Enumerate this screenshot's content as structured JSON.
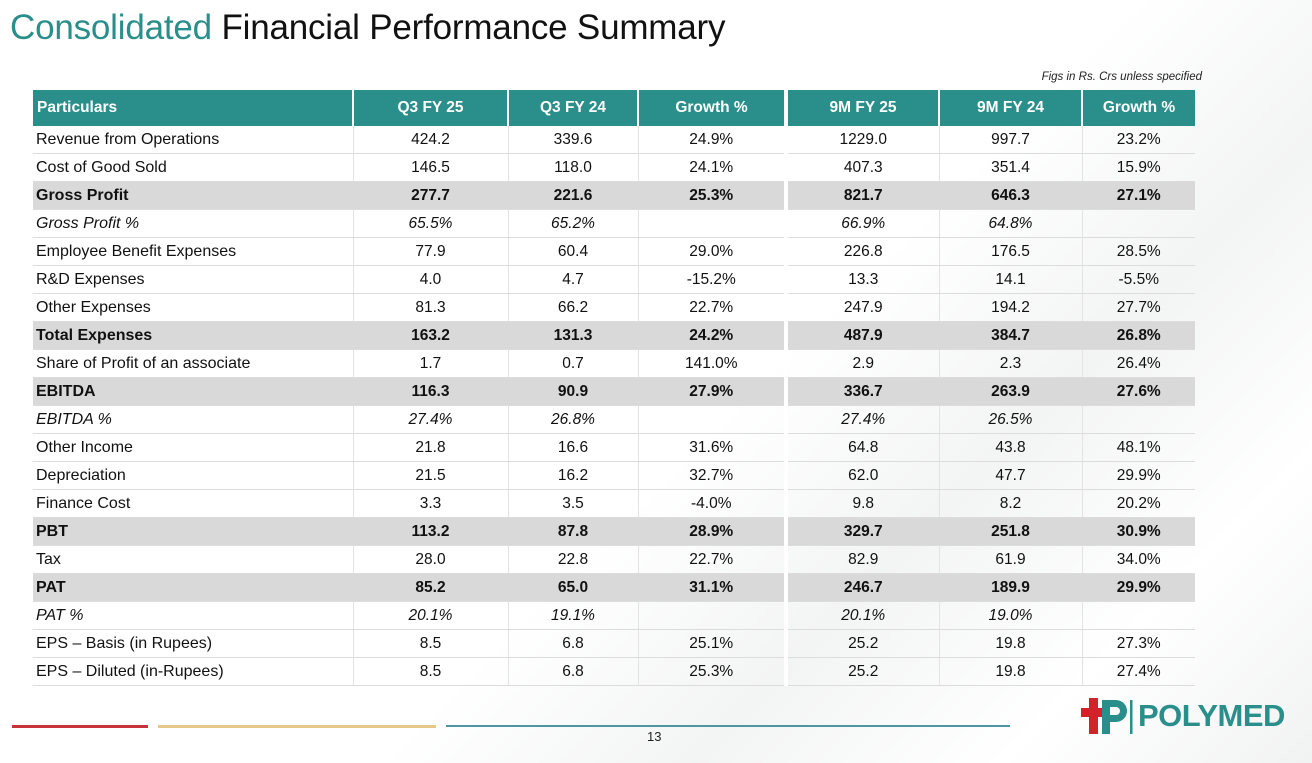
{
  "title": {
    "accent": "Consolidated",
    "rest": "Financial Performance Summary"
  },
  "note": "Figs in Rs. Crs unless specified",
  "table": {
    "headers": [
      "Particulars",
      "Q3 FY 25",
      "Q3 FY 24",
      "Growth %",
      "9M FY 25",
      "9M FY 24",
      "Growth %"
    ],
    "rows": [
      {
        "style": "normal",
        "cells": [
          "Revenue from Operations",
          "424.2",
          "339.6",
          "24.9%",
          "1229.0",
          "997.7",
          "23.2%"
        ]
      },
      {
        "style": "normal",
        "cells": [
          "Cost of Good Sold",
          "146.5",
          "118.0",
          "24.1%",
          "407.3",
          "351.4",
          "15.9%"
        ]
      },
      {
        "style": "bold",
        "cells": [
          "Gross Profit",
          "277.7",
          "221.6",
          "25.3%",
          "821.7",
          "646.3",
          "27.1%"
        ]
      },
      {
        "style": "italic",
        "cells": [
          "Gross Profit %",
          "65.5%",
          "65.2%",
          "",
          "66.9%",
          "64.8%",
          ""
        ]
      },
      {
        "style": "normal",
        "cells": [
          "Employee Benefit Expenses",
          "77.9",
          "60.4",
          "29.0%",
          "226.8",
          "176.5",
          "28.5%"
        ]
      },
      {
        "style": "normal",
        "cells": [
          "R&D Expenses",
          "4.0",
          "4.7",
          "-15.2%",
          "13.3",
          "14.1",
          "-5.5%"
        ]
      },
      {
        "style": "normal",
        "cells": [
          "Other Expenses",
          "81.3",
          "66.2",
          "22.7%",
          "247.9",
          "194.2",
          "27.7%"
        ]
      },
      {
        "style": "bold",
        "cells": [
          "Total Expenses",
          "163.2",
          "131.3",
          "24.2%",
          "487.9",
          "384.7",
          "26.8%"
        ]
      },
      {
        "style": "normal",
        "cells": [
          "Share of Profit of an associate",
          "1.7",
          "0.7",
          "141.0%",
          "2.9",
          "2.3",
          "26.4%"
        ]
      },
      {
        "style": "bold",
        "cells": [
          "EBITDA",
          "116.3",
          "90.9",
          "27.9%",
          "336.7",
          "263.9",
          "27.6%"
        ]
      },
      {
        "style": "italic",
        "cells": [
          "EBITDA %",
          "27.4%",
          "26.8%",
          "",
          "27.4%",
          "26.5%",
          ""
        ]
      },
      {
        "style": "normal",
        "cells": [
          "Other Income",
          "21.8",
          "16.6",
          "31.6%",
          "64.8",
          "43.8",
          "48.1%"
        ]
      },
      {
        "style": "normal",
        "cells": [
          "Depreciation",
          "21.5",
          "16.2",
          "32.7%",
          "62.0",
          "47.7",
          "29.9%"
        ]
      },
      {
        "style": "normal",
        "cells": [
          "Finance Cost",
          "3.3",
          "3.5",
          "-4.0%",
          "9.8",
          "8.2",
          "20.2%"
        ]
      },
      {
        "style": "bold",
        "cells": [
          "PBT",
          "113.2",
          "87.8",
          "28.9%",
          "329.7",
          "251.8",
          "30.9%"
        ]
      },
      {
        "style": "normal",
        "cells": [
          "Tax",
          "28.0",
          "22.8",
          "22.7%",
          "82.9",
          "61.9",
          "34.0%"
        ]
      },
      {
        "style": "bold",
        "cells": [
          "PAT",
          "85.2",
          "65.0",
          "31.1%",
          "246.7",
          "189.9",
          "29.9%"
        ]
      },
      {
        "style": "italic",
        "cells": [
          "PAT %",
          "20.1%",
          "19.1%",
          "",
          "20.1%",
          "19.0%",
          ""
        ]
      },
      {
        "style": "normal",
        "cells": [
          "EPS – Basis (in Rupees)",
          "8.5",
          "6.8",
          "25.1%",
          "25.2",
          "19.8",
          "27.3%"
        ]
      },
      {
        "style": "normal",
        "cells": [
          "EPS – Diluted (in-Rupees)",
          "8.5",
          "6.8",
          "25.3%",
          "25.2",
          "19.8",
          "27.4%"
        ]
      }
    ]
  },
  "footer": {
    "page_number": "13",
    "logo_text": "POLYMED",
    "logo_icon": "polymed-cross-logo"
  },
  "colors": {
    "accent": "#2a8f8a",
    "header_bg": "#2a8f8a",
    "bold_row_bg": "#d9d9d9",
    "logo_red": "#d2232a",
    "line_red": "#c8323a",
    "line_gold": "#e5c98a",
    "line_teal": "#4f97a0"
  }
}
